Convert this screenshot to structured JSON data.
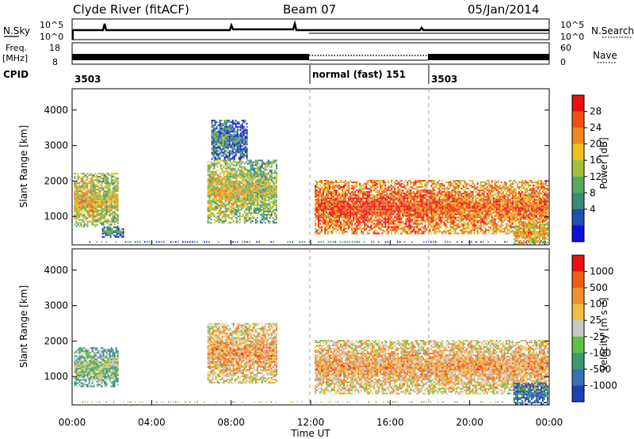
{
  "header": {
    "station": "Clyde River (fitACF)",
    "beam": "Beam 07",
    "date": "05/Jan/2014"
  },
  "strip_labels": {
    "nsky": "N.Sky",
    "nsearch": "N.Search",
    "freq_line1": "Freq.",
    "freq_line2": "[MHz]",
    "nave": "Nave",
    "cpid": "CPID",
    "noise_ticks": [
      "10^5",
      "10^0"
    ],
    "freq_ticks": [
      "18",
      "8"
    ],
    "nave_ticks": [
      "60",
      "0"
    ]
  },
  "cpid_segments": [
    {
      "label": "3503",
      "start_hour": 0
    },
    {
      "label": "normal (fast) 151",
      "start_hour": 12.0
    },
    {
      "label": "3503",
      "start_hour": 18.1
    }
  ],
  "chart_data": [
    {
      "type": "heatmap",
      "panel": "power",
      "ylabel": "Slant Range [km]",
      "xlabel": "",
      "x_range_hours": [
        0,
        24
      ],
      "ylim": [
        200,
        4600
      ],
      "yticks": [
        1000,
        2000,
        3000,
        4000
      ],
      "colorbar": {
        "label": "Power [dB]",
        "ticks": [
          "28",
          "24",
          "20",
          "16",
          "12",
          "8",
          "4"
        ],
        "colors": [
          "#1010d8",
          "#2050b0",
          "#3a8a78",
          "#5aa860",
          "#a0c040",
          "#f0c020",
          "#f08a20",
          "#f05010",
          "#e81010"
        ]
      },
      "backscatter_regions": [
        {
          "t0": 0.1,
          "t1": 2.3,
          "r0": 700,
          "r1": 2200,
          "level": 0.6
        },
        {
          "t0": 1.5,
          "t1": 2.6,
          "r0": 400,
          "r1": 700,
          "level": 0.35
        },
        {
          "t0": 6.8,
          "t1": 10.3,
          "r0": 800,
          "r1": 2600,
          "level": 0.55
        },
        {
          "t0": 7.0,
          "t1": 8.8,
          "r0": 2600,
          "r1": 3700,
          "level": 0.3
        },
        {
          "t0": 12.2,
          "t1": 23.9,
          "r0": 500,
          "r1": 2000,
          "level": 0.85
        },
        {
          "t0": 22.2,
          "t1": 23.9,
          "r0": 200,
          "r1": 800,
          "level": 0.7
        }
      ]
    },
    {
      "type": "heatmap",
      "panel": "velocity",
      "ylabel": "Slant Range [km]",
      "xlabel": "Time UT",
      "x_range_hours": [
        0,
        24
      ],
      "ylim": [
        200,
        4600
      ],
      "yticks": [
        1000,
        2000,
        3000,
        4000
      ],
      "xtick_labels": [
        "00:00",
        "04:00",
        "08:00",
        "12:00",
        "16:00",
        "20:00",
        "00:00"
      ],
      "colorbar": {
        "label": "Velocity [m s⁻¹]",
        "ticks": [
          "1000",
          "500",
          "100",
          "25",
          "-25",
          "-100",
          "-500",
          "-1000"
        ],
        "colors": [
          "#2040b0",
          "#3a70b0",
          "#3a9a70",
          "#60c040",
          "#c8c8c8",
          "#f0c040",
          "#f09030",
          "#f06010",
          "#e81010"
        ]
      },
      "backscatter_regions": [
        {
          "t0": 0.1,
          "t1": 2.3,
          "r0": 700,
          "r1": 1800,
          "level": 0.45
        },
        {
          "t0": 6.8,
          "t1": 10.3,
          "r0": 800,
          "r1": 2500,
          "level": 0.7
        },
        {
          "t0": 12.2,
          "t1": 23.9,
          "r0": 500,
          "r1": 2000,
          "level": 0.7
        },
        {
          "t0": 22.2,
          "t1": 23.9,
          "r0": 200,
          "r1": 800,
          "level": 0.2
        }
      ]
    }
  ]
}
